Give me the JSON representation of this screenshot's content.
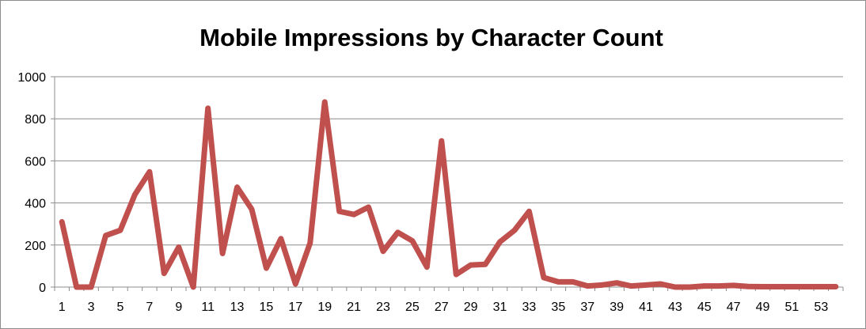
{
  "chart_data": {
    "type": "line",
    "title": "Mobile Impressions by Character Count",
    "xlabel": "",
    "ylabel": "",
    "ylim": [
      0,
      1000
    ],
    "yticks": [
      0,
      200,
      400,
      600,
      800,
      1000
    ],
    "x": [
      1,
      2,
      3,
      4,
      5,
      6,
      7,
      8,
      9,
      10,
      11,
      12,
      13,
      14,
      15,
      16,
      17,
      18,
      19,
      20,
      21,
      22,
      23,
      24,
      25,
      26,
      27,
      28,
      29,
      30,
      31,
      32,
      33,
      34,
      35,
      36,
      37,
      38,
      39,
      40,
      41,
      42,
      43,
      44,
      45,
      46,
      47,
      48,
      49,
      50,
      51,
      52,
      53,
      54
    ],
    "xtick_labels": [
      1,
      3,
      5,
      7,
      9,
      11,
      13,
      15,
      17,
      19,
      21,
      23,
      25,
      27,
      29,
      31,
      33,
      35,
      37,
      39,
      41,
      43,
      45,
      47,
      49,
      51,
      53
    ],
    "series": [
      {
        "values": [
          310,
          0,
          0,
          245,
          270,
          440,
          548,
          65,
          190,
          0,
          850,
          160,
          475,
          370,
          90,
          230,
          15,
          210,
          880,
          360,
          345,
          380,
          170,
          260,
          220,
          95,
          695,
          60,
          105,
          108,
          215,
          270,
          360,
          45,
          25,
          25,
          5,
          10,
          20,
          5,
          10,
          15,
          0,
          0,
          5,
          5,
          8,
          3,
          2,
          2,
          2,
          2,
          2,
          2
        ],
        "color": "#c0504d"
      }
    ],
    "grid": true,
    "legend": "none"
  }
}
